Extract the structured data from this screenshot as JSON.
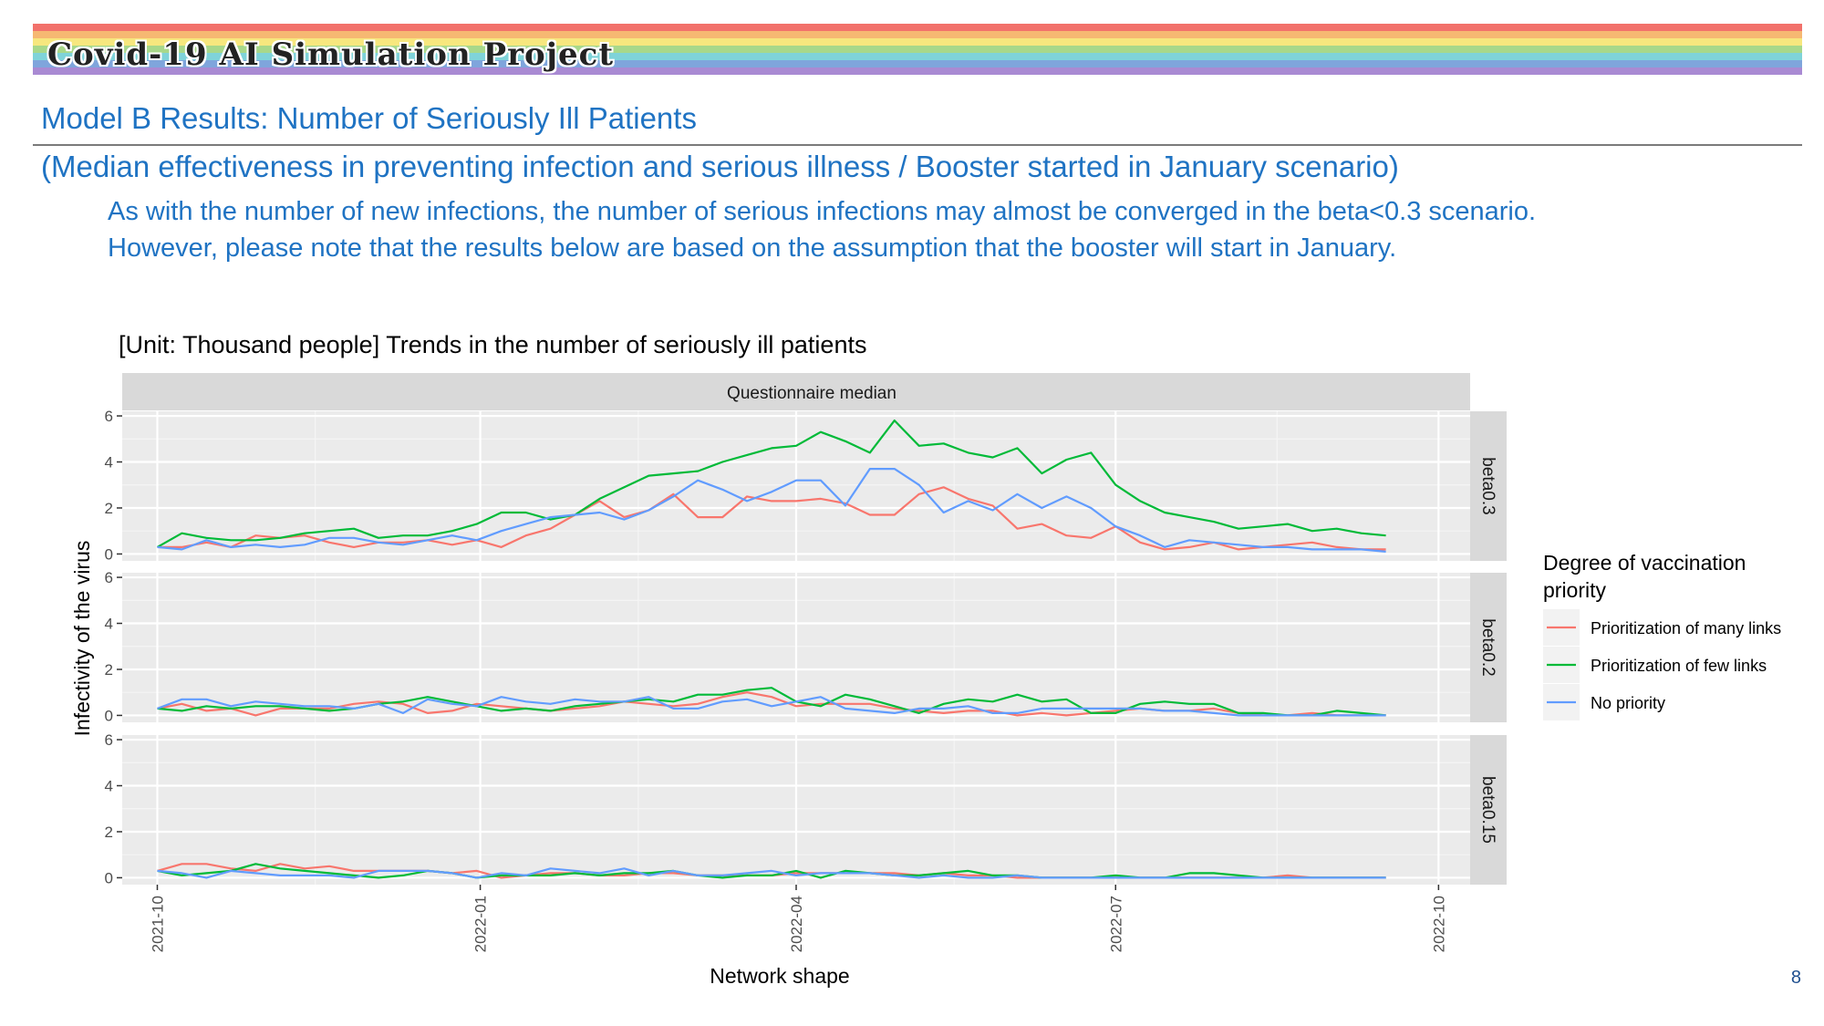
{
  "header": {
    "project_title": "Covid-19 AI Simulation Project",
    "rainbow_colors": [
      "#f2716b",
      "#f6b872",
      "#f7e77e",
      "#a8d88a",
      "#7fd3d9",
      "#7fa5dc",
      "#a98ad3"
    ]
  },
  "slide": {
    "title": "Model B Results: Number of Seriously Ill Patients",
    "subtitle": "(Median effectiveness in preventing infection and serious illness / Booster started in January scenario)",
    "body_lines": [
      "As with the number of new infections, the number of serious infections may almost be converged in the beta<0.3 scenario.",
      "However, please note that the results below are based on the assumption that the booster will start in January."
    ],
    "page_number": "8"
  },
  "chart_data": {
    "type": "line",
    "title": "[Unit: Thousand people] Trends in the number of seriously ill patients",
    "facet_title": "Questionnaire median",
    "xlabel": "Network shape",
    "ylabel": "Infectivity of the virus",
    "x_ticks": [
      "2021-10",
      "2022-01",
      "2022-04",
      "2022-07",
      "2022-10"
    ],
    "y_ticks": [
      0,
      2,
      4,
      6
    ],
    "ylim": [
      -0.3,
      6.2
    ],
    "x_start": "2021-10-01",
    "x_step_days": 7,
    "grid": true,
    "legend": {
      "title": "Degree of vaccination priority",
      "placement": "right",
      "entries": [
        {
          "name": "Prioritization of many links",
          "color": "#f8766d"
        },
        {
          "name": "Prioritization of few links",
          "color": "#00ba38"
        },
        {
          "name": "No priority",
          "color": "#619cff"
        }
      ]
    },
    "panels": [
      {
        "label": "beta0.3",
        "series": [
          {
            "name": "Prioritization of many links",
            "values": [
              0.3,
              0.3,
              0.5,
              0.3,
              0.8,
              0.7,
              0.8,
              0.5,
              0.3,
              0.5,
              0.5,
              0.6,
              0.4,
              0.6,
              0.3,
              0.8,
              1.1,
              1.7,
              2.3,
              1.6,
              1.9,
              2.6,
              1.6,
              1.6,
              2.5,
              2.3,
              2.3,
              2.4,
              2.2,
              1.7,
              1.7,
              2.6,
              2.9,
              2.4,
              2.1,
              1.1,
              1.3,
              0.8,
              0.7,
              1.2,
              0.5,
              0.2,
              0.3,
              0.5,
              0.2,
              0.3,
              0.4,
              0.5,
              0.3,
              0.2,
              0.2
            ]
          },
          {
            "name": "Prioritization of few links",
            "values": [
              0.3,
              0.9,
              0.7,
              0.6,
              0.6,
              0.7,
              0.9,
              1.0,
              1.1,
              0.7,
              0.8,
              0.8,
              1.0,
              1.3,
              1.8,
              1.8,
              1.5,
              1.7,
              2.4,
              2.9,
              3.4,
              3.5,
              3.6,
              4.0,
              4.3,
              4.6,
              4.7,
              5.3,
              4.9,
              4.4,
              5.8,
              4.7,
              4.8,
              4.4,
              4.2,
              4.6,
              3.5,
              4.1,
              4.4,
              3.0,
              2.3,
              1.8,
              1.6,
              1.4,
              1.1,
              1.2,
              1.3,
              1.0,
              1.1,
              0.9,
              0.8
            ]
          },
          {
            "name": "No priority",
            "values": [
              0.3,
              0.2,
              0.6,
              0.3,
              0.4,
              0.3,
              0.4,
              0.7,
              0.7,
              0.5,
              0.4,
              0.6,
              0.8,
              0.6,
              1.0,
              1.3,
              1.6,
              1.7,
              1.8,
              1.5,
              1.9,
              2.5,
              3.2,
              2.8,
              2.3,
              2.7,
              3.2,
              3.2,
              2.1,
              3.7,
              3.7,
              3.0,
              1.8,
              2.3,
              1.9,
              2.6,
              2.0,
              2.5,
              2.0,
              1.2,
              0.8,
              0.3,
              0.6,
              0.5,
              0.4,
              0.3,
              0.3,
              0.2,
              0.2,
              0.2,
              0.1
            ]
          }
        ]
      },
      {
        "label": "beta0.2",
        "series": [
          {
            "name": "Prioritization of many links",
            "values": [
              0.3,
              0.5,
              0.2,
              0.3,
              0.0,
              0.3,
              0.3,
              0.3,
              0.5,
              0.6,
              0.5,
              0.1,
              0.2,
              0.5,
              0.4,
              0.3,
              0.2,
              0.3,
              0.4,
              0.6,
              0.5,
              0.4,
              0.5,
              0.8,
              1.0,
              0.8,
              0.4,
              0.5,
              0.5,
              0.5,
              0.3,
              0.2,
              0.1,
              0.2,
              0.2,
              0.0,
              0.1,
              0.0,
              0.1,
              0.2,
              0.3,
              0.2,
              0.2,
              0.3,
              0.1,
              0.0,
              0.0,
              0.1,
              0.0,
              0.0,
              0.0
            ]
          },
          {
            "name": "Prioritization of few links",
            "values": [
              0.3,
              0.2,
              0.4,
              0.3,
              0.4,
              0.4,
              0.3,
              0.2,
              0.3,
              0.5,
              0.6,
              0.8,
              0.6,
              0.4,
              0.2,
              0.3,
              0.2,
              0.4,
              0.5,
              0.6,
              0.7,
              0.6,
              0.9,
              0.9,
              1.1,
              1.2,
              0.6,
              0.4,
              0.9,
              0.7,
              0.4,
              0.1,
              0.5,
              0.7,
              0.6,
              0.9,
              0.6,
              0.7,
              0.1,
              0.1,
              0.5,
              0.6,
              0.5,
              0.5,
              0.1,
              0.1,
              0.0,
              0.0,
              0.2,
              0.1,
              0.0
            ]
          },
          {
            "name": "No priority",
            "values": [
              0.3,
              0.7,
              0.7,
              0.4,
              0.6,
              0.5,
              0.4,
              0.4,
              0.3,
              0.5,
              0.1,
              0.7,
              0.5,
              0.4,
              0.8,
              0.6,
              0.5,
              0.7,
              0.6,
              0.6,
              0.8,
              0.3,
              0.3,
              0.6,
              0.7,
              0.4,
              0.6,
              0.8,
              0.3,
              0.2,
              0.1,
              0.3,
              0.3,
              0.4,
              0.1,
              0.1,
              0.3,
              0.3,
              0.3,
              0.3,
              0.3,
              0.2,
              0.2,
              0.1,
              0.0,
              0.0,
              0.0,
              0.0,
              0.0,
              0.0,
              0.0
            ]
          }
        ]
      },
      {
        "label": "beta0.15",
        "series": [
          {
            "name": "Prioritization of many links",
            "values": [
              0.3,
              0.6,
              0.6,
              0.4,
              0.3,
              0.6,
              0.4,
              0.5,
              0.3,
              0.3,
              0.3,
              0.3,
              0.2,
              0.3,
              0.0,
              0.1,
              0.2,
              0.2,
              0.1,
              0.1,
              0.2,
              0.2,
              0.1,
              0.1,
              0.1,
              0.1,
              0.2,
              0.2,
              0.2,
              0.2,
              0.2,
              0.1,
              0.2,
              0.1,
              0.1,
              0.0,
              0.0,
              0.0,
              0.0,
              0.0,
              0.0,
              0.0,
              0.0,
              0.0,
              0.0,
              0.0,
              0.1,
              0.0,
              0.0,
              0.0,
              0.0
            ]
          },
          {
            "name": "Prioritization of few links",
            "values": [
              0.3,
              0.1,
              0.2,
              0.3,
              0.6,
              0.4,
              0.3,
              0.2,
              0.1,
              0.0,
              0.1,
              0.3,
              0.2,
              0.0,
              0.1,
              0.1,
              0.1,
              0.2,
              0.1,
              0.2,
              0.2,
              0.3,
              0.1,
              0.0,
              0.1,
              0.1,
              0.3,
              0.0,
              0.3,
              0.2,
              0.1,
              0.1,
              0.2,
              0.3,
              0.1,
              0.1,
              0.0,
              0.0,
              0.0,
              0.1,
              0.0,
              0.0,
              0.2,
              0.2,
              0.1,
              0.0,
              0.0,
              0.0,
              0.0,
              0.0,
              0.0
            ]
          },
          {
            "name": "No priority",
            "values": [
              0.3,
              0.2,
              0.0,
              0.3,
              0.2,
              0.1,
              0.1,
              0.1,
              0.0,
              0.3,
              0.3,
              0.3,
              0.2,
              0.0,
              0.2,
              0.1,
              0.4,
              0.3,
              0.2,
              0.4,
              0.1,
              0.3,
              0.1,
              0.1,
              0.2,
              0.3,
              0.1,
              0.2,
              0.2,
              0.2,
              0.1,
              0.0,
              0.1,
              0.0,
              0.0,
              0.1,
              0.0,
              0.0,
              0.0,
              0.0,
              0.0,
              0.0,
              0.0,
              0.0,
              0.0,
              0.0,
              0.0,
              0.0,
              0.0,
              0.0,
              0.0
            ]
          }
        ]
      }
    ]
  }
}
